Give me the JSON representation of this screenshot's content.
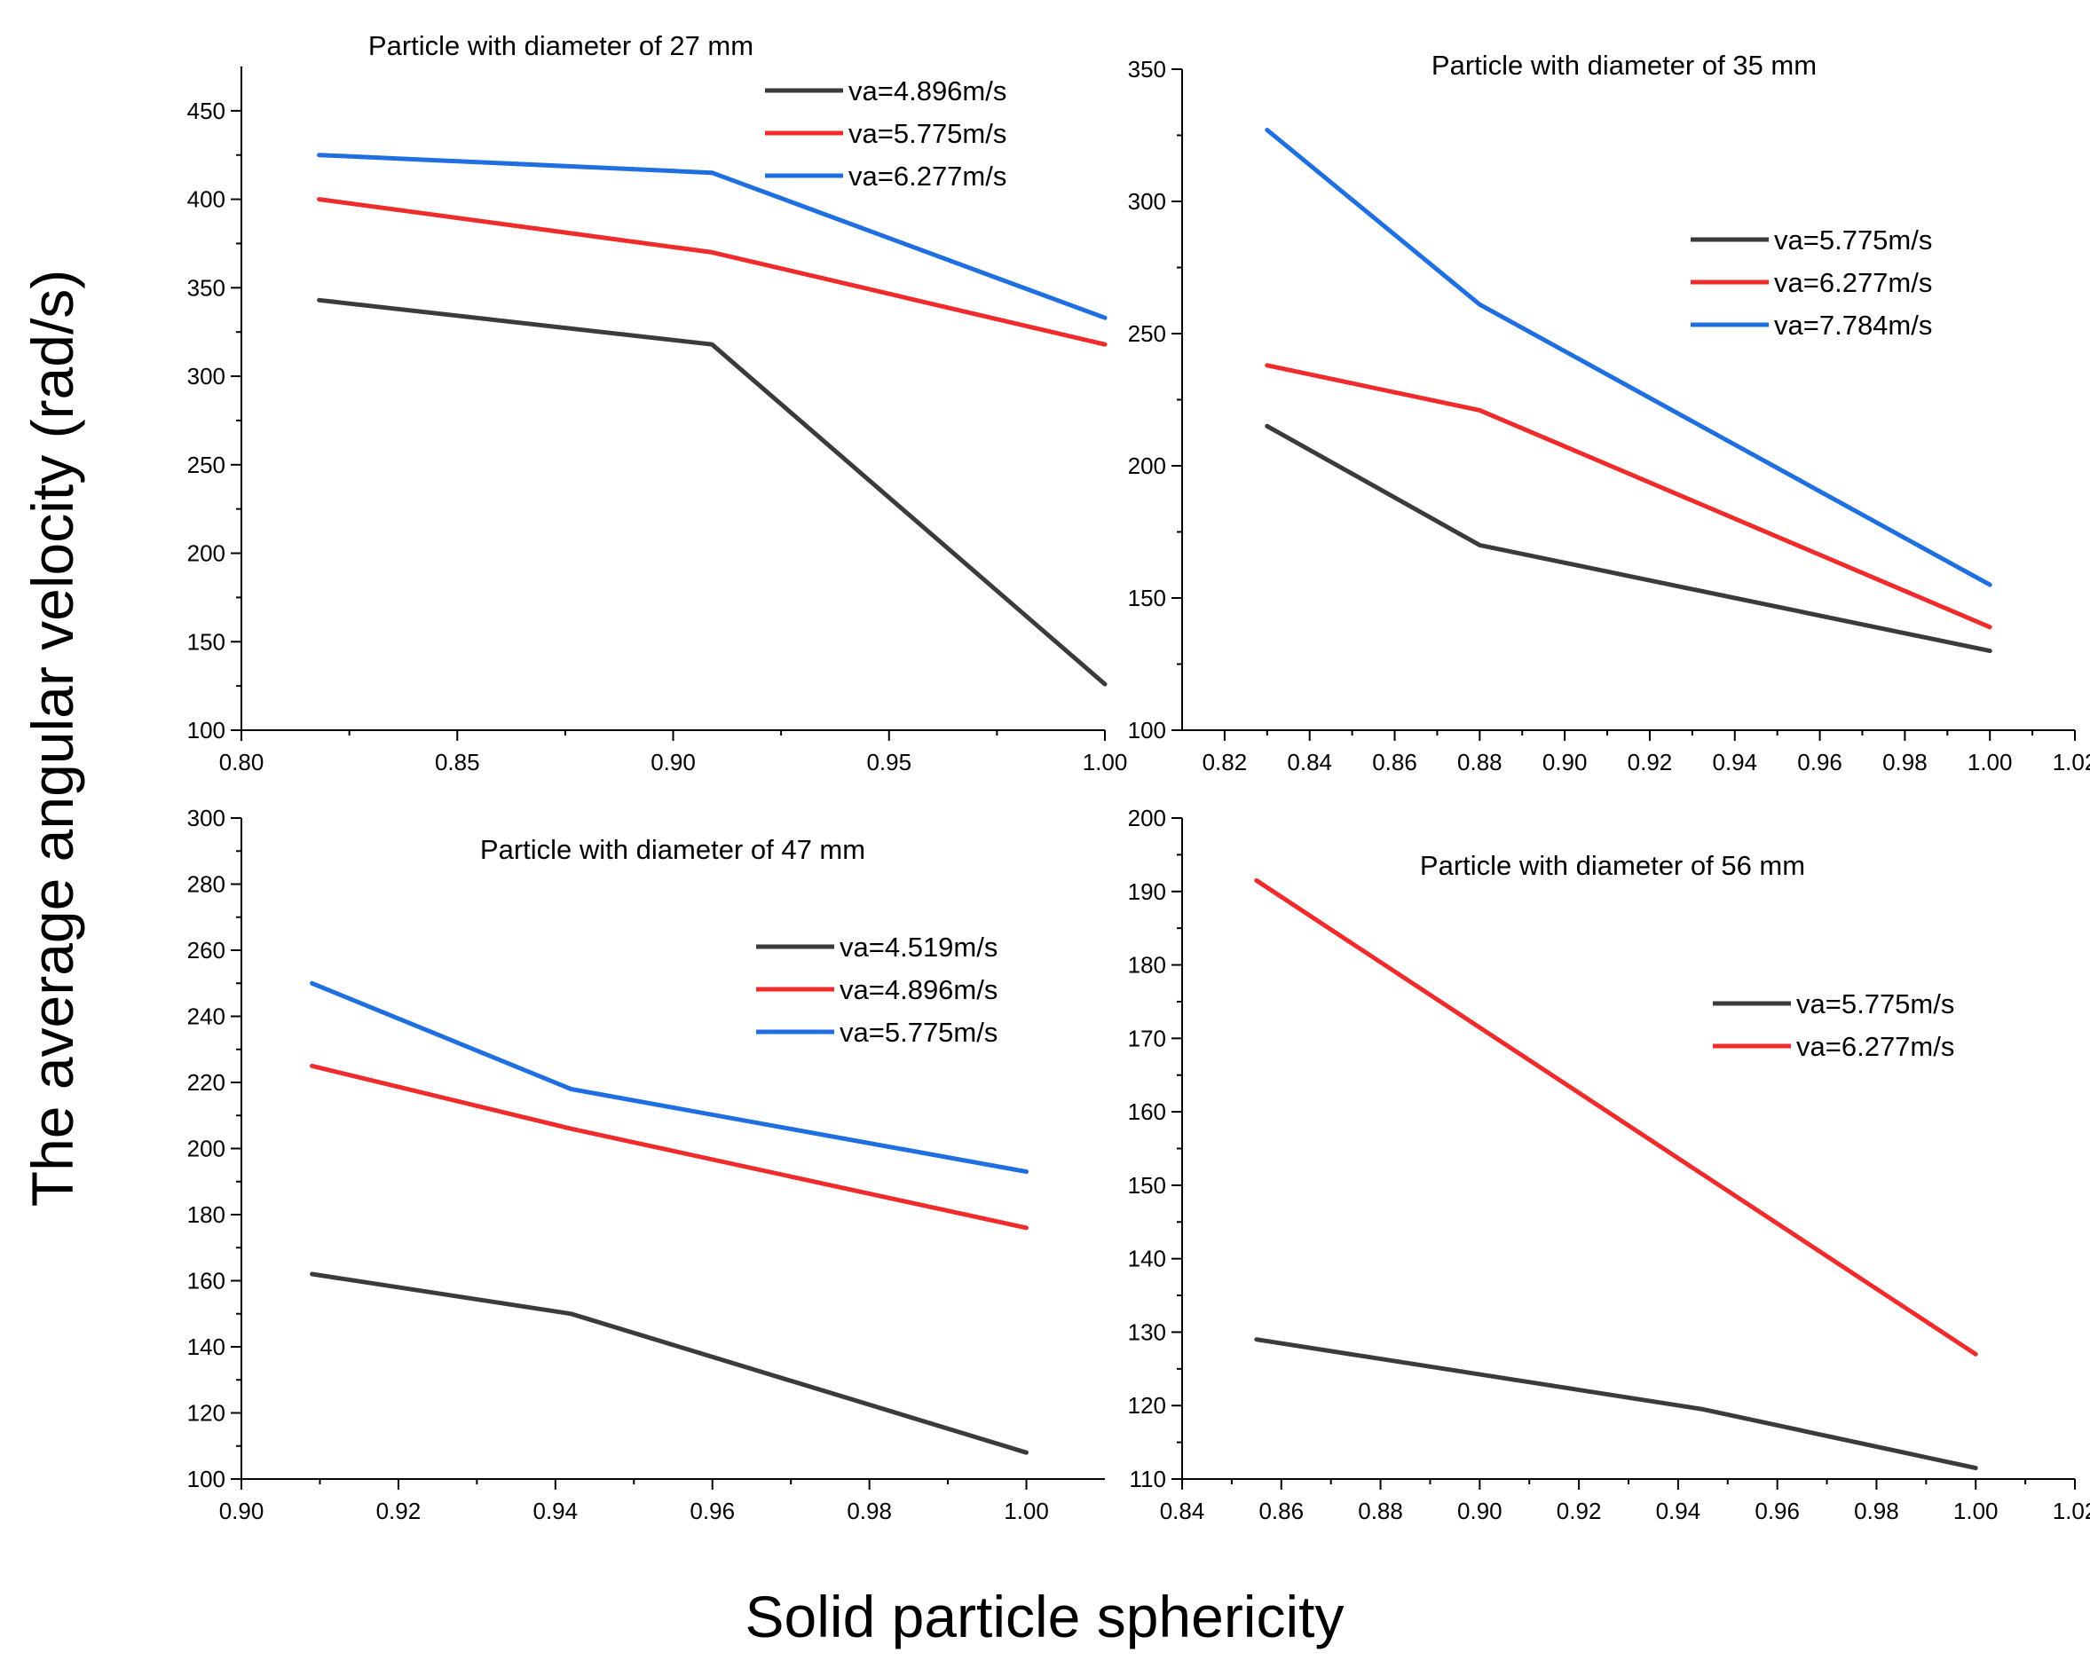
{
  "figure": {
    "ylabel": "The average angular velocity (rad/s)",
    "xlabel": "Solid particle sphericity",
    "colors": {
      "series0": "#3b3b3b",
      "series1": "#ef2b2b",
      "series2": "#1f6fe0",
      "axis": "#000000"
    }
  },
  "chart_data": [
    {
      "type": "line",
      "title": "Particle with diameter of 27 mm",
      "xlim": [
        0.8,
        1.0
      ],
      "ylim": [
        100,
        475
      ],
      "xticks": [
        0.8,
        0.85,
        0.9,
        0.95,
        1.0
      ],
      "xtick_labels": [
        "0.80",
        "0.85",
        "0.90",
        "0.95",
        "1.00"
      ],
      "yticks": [
        100,
        150,
        200,
        250,
        300,
        350,
        400,
        450
      ],
      "ytick_labels": [
        "100",
        "150",
        "200",
        "250",
        "300",
        "350",
        "400",
        "450"
      ],
      "legend_position": "top-right",
      "series": [
        {
          "name": "va=4.896m/s",
          "x": [
            0.818,
            0.909,
            1.0
          ],
          "values": [
            343,
            318,
            126
          ]
        },
        {
          "name": "va=5.775m/s",
          "x": [
            0.818,
            0.909,
            1.0
          ],
          "values": [
            400,
            370,
            318
          ]
        },
        {
          "name": "va=6.277m/s",
          "x": [
            0.818,
            0.909,
            1.0
          ],
          "values": [
            425,
            415,
            333
          ]
        }
      ]
    },
    {
      "type": "line",
      "title": "Particle with diameter of 35 mm",
      "xlim": [
        0.81,
        1.02
      ],
      "ylim": [
        100,
        350
      ],
      "xticks": [
        0.82,
        0.84,
        0.86,
        0.88,
        0.9,
        0.92,
        0.94,
        0.96,
        0.98,
        1.0,
        1.02
      ],
      "xtick_labels": [
        "0.82",
        "0.84",
        "0.86",
        "0.88",
        "0.90",
        "0.92",
        "0.94",
        "0.96",
        "0.98",
        "1.00",
        "1.02"
      ],
      "yticks": [
        100,
        150,
        200,
        250,
        300,
        350
      ],
      "ytick_labels": [
        "100",
        "150",
        "200",
        "250",
        "300",
        "350"
      ],
      "legend_position": "right",
      "series": [
        {
          "name": "va=5.775m/s",
          "x": [
            0.83,
            0.88,
            1.0
          ],
          "values": [
            215,
            170,
            130
          ]
        },
        {
          "name": "va=6.277m/s",
          "x": [
            0.83,
            0.88,
            1.0
          ],
          "values": [
            238,
            221,
            139
          ]
        },
        {
          "name": "va=7.784m/s",
          "x": [
            0.83,
            0.88,
            1.0
          ],
          "values": [
            327,
            261,
            155
          ]
        }
      ]
    },
    {
      "type": "line",
      "title": "Particle with diameter of 47 mm",
      "xlim": [
        0.9,
        1.01
      ],
      "ylim": [
        100,
        300
      ],
      "xticks": [
        0.9,
        0.92,
        0.94,
        0.96,
        0.98,
        1.0
      ],
      "xtick_labels": [
        "0.90",
        "0.92",
        "0.94",
        "0.96",
        "0.98",
        "1.00"
      ],
      "yticks": [
        100,
        120,
        140,
        160,
        180,
        200,
        220,
        240,
        260,
        280,
        300
      ],
      "ytick_labels": [
        "100",
        "120",
        "140",
        "160",
        "180",
        "200",
        "220",
        "240",
        "260",
        "280",
        "300"
      ],
      "legend_position": "right",
      "series": [
        {
          "name": "va=4.519m/s",
          "x": [
            0.909,
            0.942,
            1.0
          ],
          "values": [
            162,
            150,
            108
          ]
        },
        {
          "name": "va=4.896m/s",
          "x": [
            0.909,
            0.942,
            1.0
          ],
          "values": [
            225,
            206,
            176
          ]
        },
        {
          "name": "va=5.775m/s",
          "x": [
            0.909,
            0.942,
            1.0
          ],
          "values": [
            250,
            218,
            193
          ]
        }
      ]
    },
    {
      "type": "line",
      "title": "Particle with diameter of 56 mm",
      "xlim": [
        0.84,
        1.02
      ],
      "ylim": [
        110,
        200
      ],
      "xticks": [
        0.84,
        0.86,
        0.88,
        0.9,
        0.92,
        0.94,
        0.96,
        0.98,
        1.0,
        1.02
      ],
      "xtick_labels": [
        "0.84",
        "0.86",
        "0.88",
        "0.90",
        "0.92",
        "0.94",
        "0.96",
        "0.98",
        "1.00",
        "1.02"
      ],
      "yticks": [
        110,
        120,
        130,
        140,
        150,
        160,
        170,
        180,
        190,
        200
      ],
      "ytick_labels": [
        "110",
        "120",
        "130",
        "140",
        "150",
        "160",
        "170",
        "180",
        "190",
        "200"
      ],
      "legend_position": "right",
      "series": [
        {
          "name": "va=5.775m/s",
          "x": [
            0.855,
            0.945,
            1.0
          ],
          "values": [
            129,
            119.5,
            111.5
          ]
        },
        {
          "name": "va=6.277m/s",
          "x": [
            0.855,
            1.0
          ],
          "values": [
            191.5,
            127
          ]
        }
      ]
    }
  ]
}
